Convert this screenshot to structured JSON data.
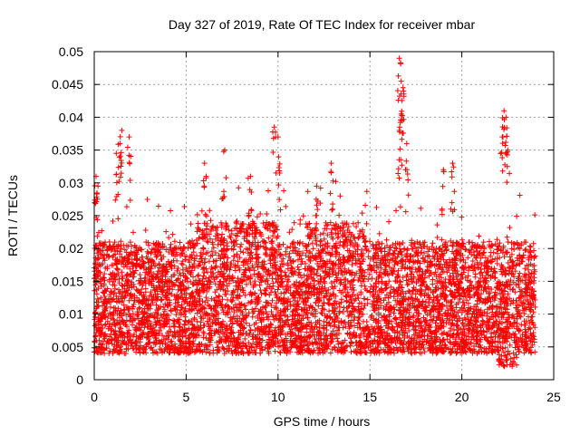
{
  "chart_data": {
    "type": "scatter",
    "title": "Day 327 of 2019, Rate Of TEC Index for receiver mbar",
    "xlabel": "GPS time / hours",
    "ylabel": "ROTI / TECUs",
    "xlim": [
      0,
      25
    ],
    "ylim": [
      0,
      0.05
    ],
    "xticks": [
      "0",
      "5",
      "10",
      "15",
      "20",
      "25"
    ],
    "yticks": [
      "0",
      "0.005",
      "0.01",
      "0.015",
      "0.02",
      "0.025",
      "0.03",
      "0.035",
      "0.04",
      "0.045",
      "0.05"
    ],
    "grid": true,
    "marker": "+",
    "series": [
      {
        "name": "ROTI",
        "color": "#ff0000",
        "x_range": [
          0,
          24
        ],
        "base_band": [
          0.005,
          0.02
        ],
        "typical_median": 0.011,
        "peaks": [
          {
            "x": 0.1,
            "y": 0.031
          },
          {
            "x": 0.2,
            "y": 0.0295
          },
          {
            "x": 1.5,
            "y": 0.038
          },
          {
            "x": 1.4,
            "y": 0.036
          },
          {
            "x": 1.9,
            "y": 0.037
          },
          {
            "x": 1.2,
            "y": 0.0345
          },
          {
            "x": 6.0,
            "y": 0.033
          },
          {
            "x": 7.1,
            "y": 0.035
          },
          {
            "x": 8.5,
            "y": 0.031
          },
          {
            "x": 9.8,
            "y": 0.0385
          },
          {
            "x": 10.0,
            "y": 0.037
          },
          {
            "x": 12.1,
            "y": 0.0295
          },
          {
            "x": 12.9,
            "y": 0.033
          },
          {
            "x": 16.6,
            "y": 0.049
          },
          {
            "x": 16.7,
            "y": 0.0455
          },
          {
            "x": 16.8,
            "y": 0.0445
          },
          {
            "x": 16.7,
            "y": 0.0405
          },
          {
            "x": 16.6,
            "y": 0.038
          },
          {
            "x": 17.0,
            "y": 0.036
          },
          {
            "x": 19.0,
            "y": 0.032
          },
          {
            "x": 19.5,
            "y": 0.033
          },
          {
            "x": 22.3,
            "y": 0.041
          },
          {
            "x": 22.4,
            "y": 0.04
          },
          {
            "x": 22.2,
            "y": 0.037
          },
          {
            "x": 22.5,
            "y": 0.035
          }
        ]
      }
    ]
  }
}
